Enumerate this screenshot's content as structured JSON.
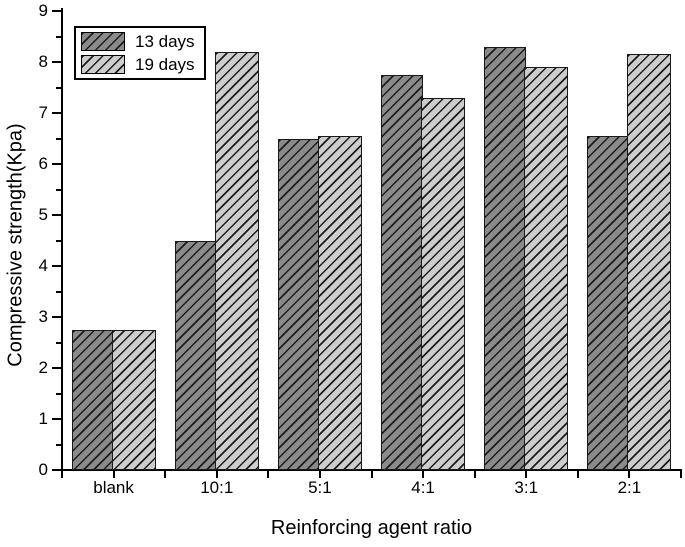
{
  "chart_data": {
    "type": "bar",
    "title": "",
    "xlabel": "Reinforcing agent ratio",
    "ylabel": "Compressive strength(Kpa)",
    "categories": [
      "blank",
      "10:1",
      "5:1",
      "4:1",
      "3:1",
      "2:1"
    ],
    "series": [
      {
        "name": "13 days",
        "fill": "#8a8a8a",
        "values": [
          2.75,
          4.5,
          6.5,
          7.75,
          8.3,
          6.55
        ]
      },
      {
        "name": "19 days",
        "fill": "#cdcdcd",
        "values": [
          2.75,
          8.2,
          6.55,
          7.3,
          7.9,
          8.15
        ]
      }
    ],
    "ylim": [
      0,
      9
    ],
    "y_major_step": 1,
    "y_minor_step": 0.5,
    "y_tick_labels": [
      "0",
      "1",
      "2",
      "3",
      "4",
      "5",
      "6",
      "7",
      "8",
      "9"
    ],
    "grid": "off",
    "legend_position": "top-left-inside",
    "hatch_style": "forward-diagonal",
    "hatch_color": "#1b1b1b",
    "bar_border_color": "#1a1a1a",
    "axis_color": "#000000",
    "background_color": "#ffffff"
  },
  "legend": {
    "entries": [
      {
        "label": "13 days"
      },
      {
        "label": "19 days"
      }
    ]
  }
}
